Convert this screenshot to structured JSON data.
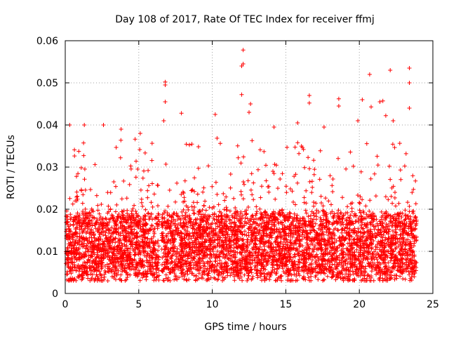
{
  "chart_data": {
    "type": "scatter",
    "title": "Day 108 of 2017, Rate Of TEC Index for receiver ffmj",
    "xlabel": "GPS time / hours",
    "ylabel": "ROTI / TECUs",
    "xlim": [
      0,
      25
    ],
    "ylim": [
      0,
      0.06
    ],
    "xticks": [
      "0",
      "5",
      "10",
      "15",
      "20",
      "25"
    ],
    "xtick_values": [
      0,
      5,
      10,
      15,
      20,
      25
    ],
    "yticks": [
      "0",
      "0.01",
      "0.02",
      "0.03",
      "0.04",
      "0.05",
      "0.06"
    ],
    "ytick_values": [
      0,
      0.01,
      0.02,
      0.03,
      0.04,
      0.05,
      0.06
    ],
    "grid": true,
    "marker": "plus",
    "series": [
      {
        "name": "ROTI",
        "color": "#ff0000",
        "data_range_hours": [
          0,
          23.9
        ],
        "typical_band": [
          0.005,
          0.02
        ],
        "outliers": [
          {
            "x": 12.1,
            "y": 0.0578
          },
          {
            "x": 12.1,
            "y": 0.0545
          },
          {
            "x": 12.0,
            "y": 0.054
          },
          {
            "x": 23.4,
            "y": 0.0535
          },
          {
            "x": 22.1,
            "y": 0.053
          },
          {
            "x": 20.7,
            "y": 0.052
          },
          {
            "x": 6.8,
            "y": 0.0502
          },
          {
            "x": 6.8,
            "y": 0.0495
          },
          {
            "x": 23.4,
            "y": 0.05
          },
          {
            "x": 12.0,
            "y": 0.0472
          },
          {
            "x": 16.6,
            "y": 0.047
          },
          {
            "x": 18.6,
            "y": 0.0462
          },
          {
            "x": 20.2,
            "y": 0.046
          },
          {
            "x": 6.8,
            "y": 0.0455
          },
          {
            "x": 21.6,
            "y": 0.0457
          },
          {
            "x": 21.4,
            "y": 0.0455
          },
          {
            "x": 16.6,
            "y": 0.0452
          },
          {
            "x": 12.6,
            "y": 0.045
          },
          {
            "x": 18.6,
            "y": 0.0445
          },
          {
            "x": 23.4,
            "y": 0.044
          },
          {
            "x": 20.8,
            "y": 0.0443
          },
          {
            "x": 12.5,
            "y": 0.043
          },
          {
            "x": 7.9,
            "y": 0.0428
          },
          {
            "x": 10.2,
            "y": 0.0425
          },
          {
            "x": 21.8,
            "y": 0.0422
          },
          {
            "x": 6.7,
            "y": 0.041
          },
          {
            "x": 15.8,
            "y": 0.0405
          },
          {
            "x": 19.9,
            "y": 0.041
          },
          {
            "x": 1.3,
            "y": 0.04
          },
          {
            "x": 2.6,
            "y": 0.04
          },
          {
            "x": 0.3,
            "y": 0.04
          },
          {
            "x": 17.6,
            "y": 0.0395
          },
          {
            "x": 3.8,
            "y": 0.039
          },
          {
            "x": 14.2,
            "y": 0.0395
          },
          {
            "x": 22.3,
            "y": 0.041
          },
          {
            "x": 5.1,
            "y": 0.038
          }
        ]
      }
    ]
  }
}
